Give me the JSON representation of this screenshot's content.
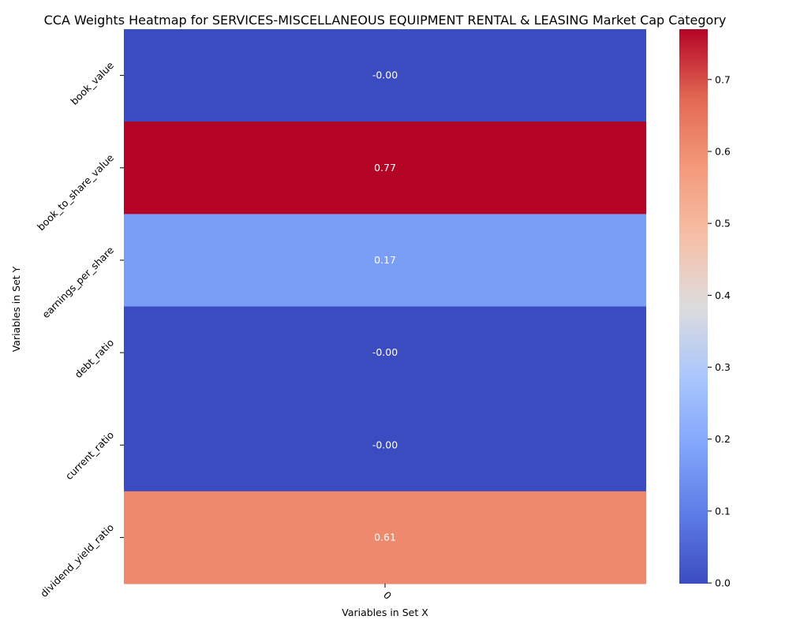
{
  "chart_data": {
    "type": "heatmap",
    "title": "CCA Weights Heatmap for SERVICES-MISCELLANEOUS EQUIPMENT RENTAL & LEASING Market Cap Category",
    "xlabel": "Variables in Set X",
    "ylabel": "Variables in Set Y",
    "x_categories": [
      "0"
    ],
    "y_categories": [
      "book_value",
      "book_to_share_value",
      "earnings_per_share",
      "debt_ratio",
      "current_ratio",
      "dividend_yield_ratio"
    ],
    "values": [
      [
        -0.001
      ],
      [
        0.77
      ],
      [
        0.17
      ],
      [
        -0.001
      ],
      [
        -0.001
      ],
      [
        0.61
      ]
    ],
    "cell_labels": [
      [
        "-0.00"
      ],
      [
        "0.77"
      ],
      [
        "0.17"
      ],
      [
        "-0.00"
      ],
      [
        "-0.00"
      ],
      [
        "0.61"
      ]
    ],
    "colormap": "coolwarm",
    "colorbar": {
      "range": [
        -0.001,
        0.77
      ],
      "ticks": [
        0.0,
        0.1,
        0.2,
        0.3,
        0.4,
        0.5,
        0.6,
        0.7
      ],
      "tick_labels": [
        "0.0",
        "0.1",
        "0.2",
        "0.3",
        "0.4",
        "0.5",
        "0.6",
        "0.7"
      ]
    },
    "annotation_color": "#ffffff"
  }
}
